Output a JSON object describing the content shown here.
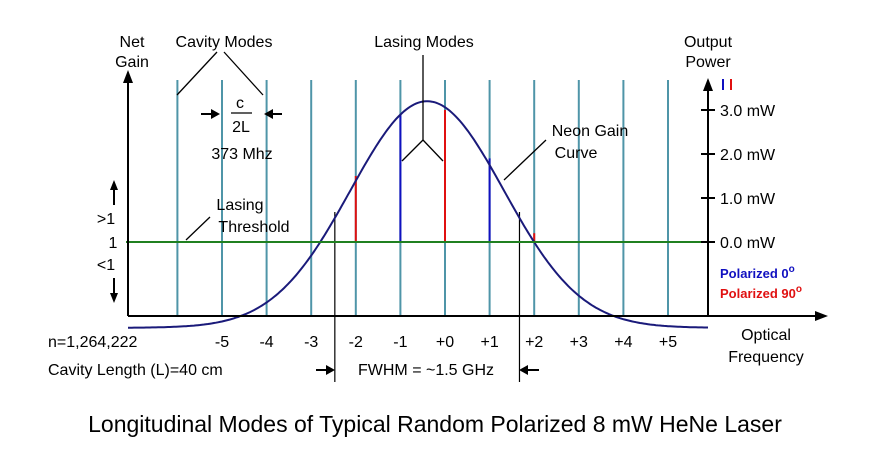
{
  "labels": {
    "net_gain_1": "Net",
    "net_gain_2": "Gain",
    "output_power_1": "Output",
    "output_power_2": "Power",
    "cavity_modes": "Cavity Modes",
    "lasing_modes": "Lasing Modes",
    "spacing_num": "c",
    "spacing_den": "2L",
    "spacing_freq": "373 Mhz",
    "neon_gain_1": "Neon Gain",
    "neon_gain_2": "Curve",
    "lasing_threshold_1": "Lasing",
    "lasing_threshold_2": "Threshold",
    "gain_gt1": ">1",
    "gain_eq1": "1",
    "gain_lt1": "<1",
    "n_index": "n=1,264,222",
    "cavity_length": "Cavity Length (L)=40 cm",
    "fwhm": "FWHM = ~1.5 GHz",
    "optical_freq_1": "Optical",
    "optical_freq_2": "Frequency",
    "legend_0": "Polarized 0",
    "legend_0_sup": "o",
    "legend_90": "Polarized 90",
    "legend_90_sup": "o",
    "caption": "Longitudinal Modes of Typical Random Polarized 8 mW HeNe Laser"
  },
  "chart_data": {
    "type": "line",
    "title": "Longitudinal Modes of Typical Random Polarized 8 mW HeNe Laser",
    "xlabel": "Optical Frequency",
    "ylabel_left": "Net Gain",
    "ylabel_right": "Output Power",
    "x_unit": "mode index (spacing c/2L = 373 MHz)",
    "mode_ticks": [
      {
        "n": -5,
        "label": "-5"
      },
      {
        "n": -4,
        "label": "-4"
      },
      {
        "n": -3,
        "label": "-3"
      },
      {
        "n": -2,
        "label": "-2"
      },
      {
        "n": -1,
        "label": "-1"
      },
      {
        "n": 0,
        "label": "+0"
      },
      {
        "n": 1,
        "label": "+1"
      },
      {
        "n": 2,
        "label": "+2"
      },
      {
        "n": 3,
        "label": "+3"
      },
      {
        "n": 4,
        "label": "+4"
      },
      {
        "n": 5,
        "label": "+5"
      }
    ],
    "cavity_mode_range": [
      -6,
      7
    ],
    "power_ticks": [
      {
        "value": 0,
        "label": "0.0 mW"
      },
      {
        "value": 1,
        "label": "1.0 mW"
      },
      {
        "value": 2,
        "label": "2.0 mW"
      },
      {
        "value": 3,
        "label": "3.0 mW"
      }
    ],
    "power_ylim": [
      -2.1,
      3.6
    ],
    "gain_curve": {
      "name": "Neon Gain Curve",
      "center": -0.4,
      "peak_mw": 3.2,
      "sigma": 1.72,
      "floor_mw": -1.95
    },
    "lasing_modes": [
      {
        "n": -2,
        "power_mw": 1.5,
        "polarization": "90"
      },
      {
        "n": -1,
        "power_mw": 2.9,
        "polarization": "0"
      },
      {
        "n": 0,
        "power_mw": 3.0,
        "polarization": "90"
      },
      {
        "n": 1,
        "power_mw": 1.9,
        "polarization": "0"
      },
      {
        "n": 2,
        "power_mw": 0.2,
        "polarization": "90"
      }
    ],
    "threshold_mw": 0,
    "fwhm_ghz": 1.5,
    "fwhm_range_modes": [
      -2.47,
      1.67
    ],
    "colors": {
      "cavity_mode": "#4f95a8",
      "gain_curve": "#1a1a7a",
      "threshold": "#208020",
      "pol_0": "#1010c0",
      "pol_90": "#e01010",
      "axis": "#000000"
    }
  }
}
